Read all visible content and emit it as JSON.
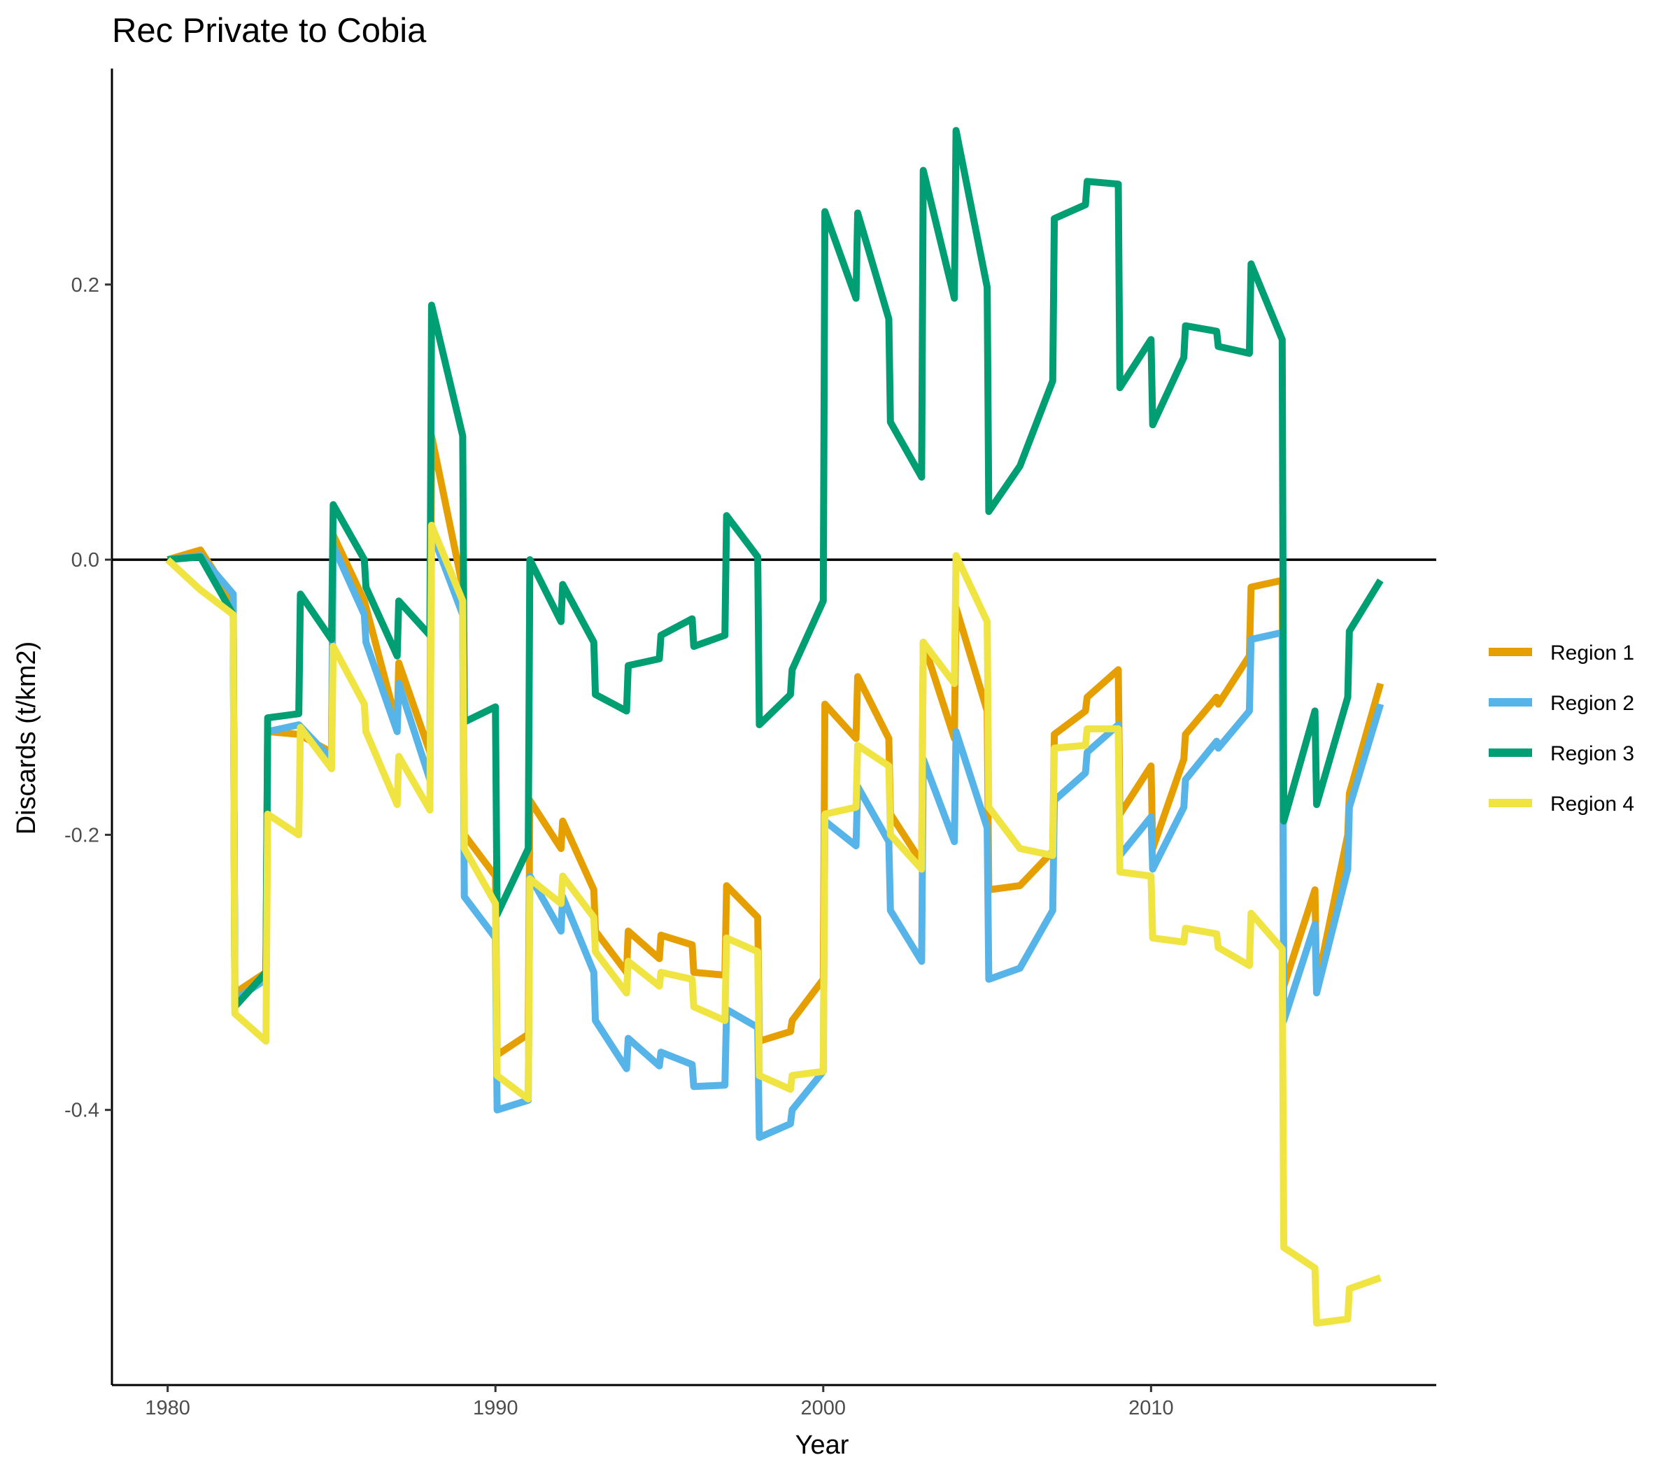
{
  "chart_data": {
    "type": "line",
    "title": "Rec Private to Cobia",
    "xlabel": "Year",
    "ylabel": "Discards (t/km2)",
    "xlim": [
      1978.3,
      2018.7
    ],
    "ylim": [
      -0.6,
      0.357
    ],
    "xticks": [
      1980,
      1990,
      2000,
      2010
    ],
    "xtick_labels": [
      "1980",
      "1990",
      "2000",
      "2010"
    ],
    "yticks": [
      -0.4,
      -0.2,
      0.0,
      0.2
    ],
    "ytick_labels": [
      "-0.4",
      "-0.2",
      "0.0",
      "0.2"
    ],
    "hline": 0.0,
    "grid": false,
    "legend": "right",
    "series": [
      {
        "name": "Region 1",
        "color": "#E69F00",
        "points": [
          [
            1980.0,
            0.0
          ],
          [
            1981.0,
            0.007
          ],
          [
            1982.0,
            -0.03
          ],
          [
            1982.05,
            -0.315
          ],
          [
            1983.0,
            -0.3
          ],
          [
            1983.05,
            -0.125
          ],
          [
            1984.0,
            -0.127
          ],
          [
            1985.0,
            -0.14
          ],
          [
            1985.05,
            0.018
          ],
          [
            1986.0,
            -0.03
          ],
          [
            1987.0,
            -0.12
          ],
          [
            1987.05,
            -0.075
          ],
          [
            1988.0,
            -0.14
          ],
          [
            1988.05,
            0.09
          ],
          [
            1989.0,
            -0.02
          ],
          [
            1989.05,
            -0.2
          ],
          [
            1990.0,
            -0.23
          ],
          [
            1990.05,
            -0.36
          ],
          [
            1991.0,
            -0.345
          ],
          [
            1991.05,
            -0.175
          ],
          [
            1992.0,
            -0.21
          ],
          [
            1992.05,
            -0.19
          ],
          [
            1993.0,
            -0.24
          ],
          [
            1993.05,
            -0.27
          ],
          [
            1994.0,
            -0.3
          ],
          [
            1994.05,
            -0.27
          ],
          [
            1995.0,
            -0.29
          ],
          [
            1995.05,
            -0.273
          ],
          [
            1996.0,
            -0.28
          ],
          [
            1996.05,
            -0.3
          ],
          [
            1997.0,
            -0.302
          ],
          [
            1997.05,
            -0.237
          ],
          [
            1998.0,
            -0.26
          ],
          [
            1998.05,
            -0.35
          ],
          [
            1999.0,
            -0.343
          ],
          [
            1999.05,
            -0.335
          ],
          [
            2000.0,
            -0.305
          ],
          [
            2000.05,
            -0.105
          ],
          [
            2001.0,
            -0.13
          ],
          [
            2001.05,
            -0.085
          ],
          [
            2002.0,
            -0.13
          ],
          [
            2002.05,
            -0.185
          ],
          [
            2003.0,
            -0.22
          ],
          [
            2003.05,
            -0.06
          ],
          [
            2004.0,
            -0.13
          ],
          [
            2004.05,
            -0.035
          ],
          [
            2005.0,
            -0.11
          ],
          [
            2005.05,
            -0.24
          ],
          [
            2006.0,
            -0.237
          ],
          [
            2007.0,
            -0.212
          ],
          [
            2007.05,
            -0.127
          ],
          [
            2008.0,
            -0.11
          ],
          [
            2008.05,
            -0.1
          ],
          [
            2009.0,
            -0.08
          ],
          [
            2009.05,
            -0.185
          ],
          [
            2010.0,
            -0.15
          ],
          [
            2010.05,
            -0.21
          ],
          [
            2011.0,
            -0.145
          ],
          [
            2011.05,
            -0.127
          ],
          [
            2012.0,
            -0.1
          ],
          [
            2012.05,
            -0.105
          ],
          [
            2013.0,
            -0.07
          ],
          [
            2013.05,
            -0.02
          ],
          [
            2014.0,
            -0.015
          ],
          [
            2014.05,
            -0.31
          ],
          [
            2015.0,
            -0.24
          ],
          [
            2015.05,
            -0.31
          ],
          [
            2016.0,
            -0.2
          ],
          [
            2016.05,
            -0.17
          ],
          [
            2017.0,
            -0.09
          ]
        ]
      },
      {
        "name": "Region 2",
        "color": "#56B4E9",
        "points": [
          [
            1980.0,
            0.0
          ],
          [
            1981.0,
            0.003
          ],
          [
            1982.0,
            -0.025
          ],
          [
            1982.05,
            -0.32
          ],
          [
            1983.0,
            -0.305
          ],
          [
            1983.05,
            -0.125
          ],
          [
            1984.0,
            -0.12
          ],
          [
            1985.0,
            -0.145
          ],
          [
            1985.05,
            0.01
          ],
          [
            1986.0,
            -0.04
          ],
          [
            1986.05,
            -0.06
          ],
          [
            1987.0,
            -0.125
          ],
          [
            1987.05,
            -0.09
          ],
          [
            1988.0,
            -0.16
          ],
          [
            1988.05,
            0.02
          ],
          [
            1989.0,
            -0.04
          ],
          [
            1989.05,
            -0.245
          ],
          [
            1990.0,
            -0.275
          ],
          [
            1990.05,
            -0.4
          ],
          [
            1991.0,
            -0.393
          ],
          [
            1991.05,
            -0.23
          ],
          [
            1992.0,
            -0.27
          ],
          [
            1992.05,
            -0.245
          ],
          [
            1993.0,
            -0.3
          ],
          [
            1993.05,
            -0.335
          ],
          [
            1994.0,
            -0.37
          ],
          [
            1994.05,
            -0.348
          ],
          [
            1995.0,
            -0.368
          ],
          [
            1995.05,
            -0.358
          ],
          [
            1996.0,
            -0.367
          ],
          [
            1996.05,
            -0.383
          ],
          [
            1997.0,
            -0.382
          ],
          [
            1997.05,
            -0.327
          ],
          [
            1998.0,
            -0.34
          ],
          [
            1998.05,
            -0.42
          ],
          [
            1999.0,
            -0.41
          ],
          [
            1999.05,
            -0.4
          ],
          [
            2000.0,
            -0.372
          ],
          [
            2000.05,
            -0.19
          ],
          [
            2001.0,
            -0.208
          ],
          [
            2001.05,
            -0.165
          ],
          [
            2002.0,
            -0.205
          ],
          [
            2002.05,
            -0.255
          ],
          [
            2003.0,
            -0.292
          ],
          [
            2003.05,
            -0.145
          ],
          [
            2004.0,
            -0.205
          ],
          [
            2004.05,
            -0.125
          ],
          [
            2005.0,
            -0.195
          ],
          [
            2005.05,
            -0.305
          ],
          [
            2006.0,
            -0.297
          ],
          [
            2007.0,
            -0.255
          ],
          [
            2007.05,
            -0.175
          ],
          [
            2008.0,
            -0.155
          ],
          [
            2008.05,
            -0.14
          ],
          [
            2009.0,
            -0.12
          ],
          [
            2009.05,
            -0.215
          ],
          [
            2010.0,
            -0.187
          ],
          [
            2010.05,
            -0.225
          ],
          [
            2011.0,
            -0.18
          ],
          [
            2011.05,
            -0.16
          ],
          [
            2012.0,
            -0.132
          ],
          [
            2012.05,
            -0.137
          ],
          [
            2013.0,
            -0.11
          ],
          [
            2013.05,
            -0.058
          ],
          [
            2014.0,
            -0.053
          ],
          [
            2014.05,
            -0.335
          ],
          [
            2015.0,
            -0.265
          ],
          [
            2015.05,
            -0.315
          ],
          [
            2016.0,
            -0.225
          ],
          [
            2016.05,
            -0.18
          ],
          [
            2017.0,
            -0.105
          ]
        ]
      },
      {
        "name": "Region 3",
        "color": "#009E73",
        "points": [
          [
            1980.0,
            0.0
          ],
          [
            1981.0,
            0.002
          ],
          [
            1982.0,
            -0.04
          ],
          [
            1982.05,
            -0.325
          ],
          [
            1983.0,
            -0.3
          ],
          [
            1983.05,
            -0.115
          ],
          [
            1984.0,
            -0.112
          ],
          [
            1984.05,
            -0.025
          ],
          [
            1985.0,
            -0.058
          ],
          [
            1985.05,
            0.04
          ],
          [
            1986.0,
            0.0
          ],
          [
            1986.05,
            -0.02
          ],
          [
            1987.0,
            -0.07
          ],
          [
            1987.05,
            -0.03
          ],
          [
            1988.0,
            -0.055
          ],
          [
            1988.05,
            0.185
          ],
          [
            1989.0,
            0.09
          ],
          [
            1989.05,
            -0.118
          ],
          [
            1990.0,
            -0.107
          ],
          [
            1990.05,
            -0.258
          ],
          [
            1991.0,
            -0.21
          ],
          [
            1991.05,
            0.0
          ],
          [
            1992.0,
            -0.045
          ],
          [
            1992.05,
            -0.018
          ],
          [
            1993.0,
            -0.06
          ],
          [
            1993.05,
            -0.098
          ],
          [
            1994.0,
            -0.11
          ],
          [
            1994.05,
            -0.077
          ],
          [
            1995.0,
            -0.072
          ],
          [
            1995.05,
            -0.055
          ],
          [
            1996.0,
            -0.043
          ],
          [
            1996.05,
            -0.063
          ],
          [
            1997.0,
            -0.055
          ],
          [
            1997.05,
            0.032
          ],
          [
            1998.0,
            0.002
          ],
          [
            1998.05,
            -0.12
          ],
          [
            1999.0,
            -0.098
          ],
          [
            1999.05,
            -0.08
          ],
          [
            2000.0,
            -0.03
          ],
          [
            2000.05,
            0.253
          ],
          [
            2001.0,
            0.19
          ],
          [
            2001.05,
            0.252
          ],
          [
            2002.0,
            0.175
          ],
          [
            2002.05,
            0.1
          ],
          [
            2003.0,
            0.06
          ],
          [
            2003.05,
            0.283
          ],
          [
            2004.0,
            0.19
          ],
          [
            2004.05,
            0.312
          ],
          [
            2005.0,
            0.198
          ],
          [
            2005.05,
            0.035
          ],
          [
            2006.0,
            0.068
          ],
          [
            2007.0,
            0.13
          ],
          [
            2007.05,
            0.248
          ],
          [
            2008.0,
            0.258
          ],
          [
            2008.05,
            0.275
          ],
          [
            2009.0,
            0.273
          ],
          [
            2009.05,
            0.125
          ],
          [
            2010.0,
            0.16
          ],
          [
            2010.05,
            0.098
          ],
          [
            2011.0,
            0.147
          ],
          [
            2011.05,
            0.17
          ],
          [
            2012.0,
            0.166
          ],
          [
            2012.05,
            0.155
          ],
          [
            2013.0,
            0.15
          ],
          [
            2013.05,
            0.215
          ],
          [
            2014.0,
            0.16
          ],
          [
            2014.05,
            -0.19
          ],
          [
            2015.0,
            -0.11
          ],
          [
            2015.05,
            -0.178
          ],
          [
            2016.0,
            -0.1
          ],
          [
            2016.05,
            -0.052
          ],
          [
            2017.0,
            -0.015
          ]
        ]
      },
      {
        "name": "Region 4",
        "color": "#F0E442",
        "points": [
          [
            1980.0,
            0.0
          ],
          [
            1981.0,
            -0.022
          ],
          [
            1982.0,
            -0.04
          ],
          [
            1982.05,
            -0.33
          ],
          [
            1983.0,
            -0.35
          ],
          [
            1983.05,
            -0.185
          ],
          [
            1984.0,
            -0.2
          ],
          [
            1984.05,
            -0.122
          ],
          [
            1985.0,
            -0.152
          ],
          [
            1985.05,
            -0.063
          ],
          [
            1986.0,
            -0.105
          ],
          [
            1986.05,
            -0.125
          ],
          [
            1987.0,
            -0.178
          ],
          [
            1987.05,
            -0.143
          ],
          [
            1988.0,
            -0.182
          ],
          [
            1988.05,
            0.025
          ],
          [
            1989.0,
            -0.03
          ],
          [
            1989.05,
            -0.21
          ],
          [
            1990.0,
            -0.25
          ],
          [
            1990.05,
            -0.375
          ],
          [
            1991.0,
            -0.392
          ],
          [
            1991.05,
            -0.232
          ],
          [
            1992.0,
            -0.25
          ],
          [
            1992.05,
            -0.23
          ],
          [
            1993.0,
            -0.26
          ],
          [
            1993.05,
            -0.285
          ],
          [
            1994.0,
            -0.315
          ],
          [
            1994.05,
            -0.292
          ],
          [
            1995.0,
            -0.31
          ],
          [
            1995.05,
            -0.3
          ],
          [
            1996.0,
            -0.305
          ],
          [
            1996.05,
            -0.325
          ],
          [
            1997.0,
            -0.335
          ],
          [
            1997.05,
            -0.275
          ],
          [
            1998.0,
            -0.285
          ],
          [
            1998.05,
            -0.375
          ],
          [
            1999.0,
            -0.385
          ],
          [
            1999.05,
            -0.375
          ],
          [
            2000.0,
            -0.372
          ],
          [
            2000.05,
            -0.185
          ],
          [
            2001.0,
            -0.18
          ],
          [
            2001.05,
            -0.135
          ],
          [
            2002.0,
            -0.15
          ],
          [
            2002.05,
            -0.2
          ],
          [
            2003.0,
            -0.225
          ],
          [
            2003.05,
            -0.06
          ],
          [
            2004.0,
            -0.09
          ],
          [
            2004.05,
            0.003
          ],
          [
            2005.0,
            -0.045
          ],
          [
            2005.05,
            -0.18
          ],
          [
            2006.0,
            -0.21
          ],
          [
            2007.0,
            -0.215
          ],
          [
            2007.05,
            -0.137
          ],
          [
            2008.0,
            -0.135
          ],
          [
            2008.05,
            -0.123
          ],
          [
            2009.0,
            -0.123
          ],
          [
            2009.05,
            -0.227
          ],
          [
            2010.0,
            -0.23
          ],
          [
            2010.05,
            -0.275
          ],
          [
            2011.0,
            -0.278
          ],
          [
            2011.05,
            -0.268
          ],
          [
            2012.0,
            -0.272
          ],
          [
            2012.05,
            -0.282
          ],
          [
            2013.0,
            -0.295
          ],
          [
            2013.05,
            -0.257
          ],
          [
            2014.0,
            -0.283
          ],
          [
            2014.05,
            -0.5
          ],
          [
            2015.0,
            -0.515
          ],
          [
            2015.05,
            -0.555
          ],
          [
            2016.0,
            -0.552
          ],
          [
            2016.05,
            -0.53
          ],
          [
            2017.0,
            -0.522
          ]
        ]
      }
    ]
  }
}
